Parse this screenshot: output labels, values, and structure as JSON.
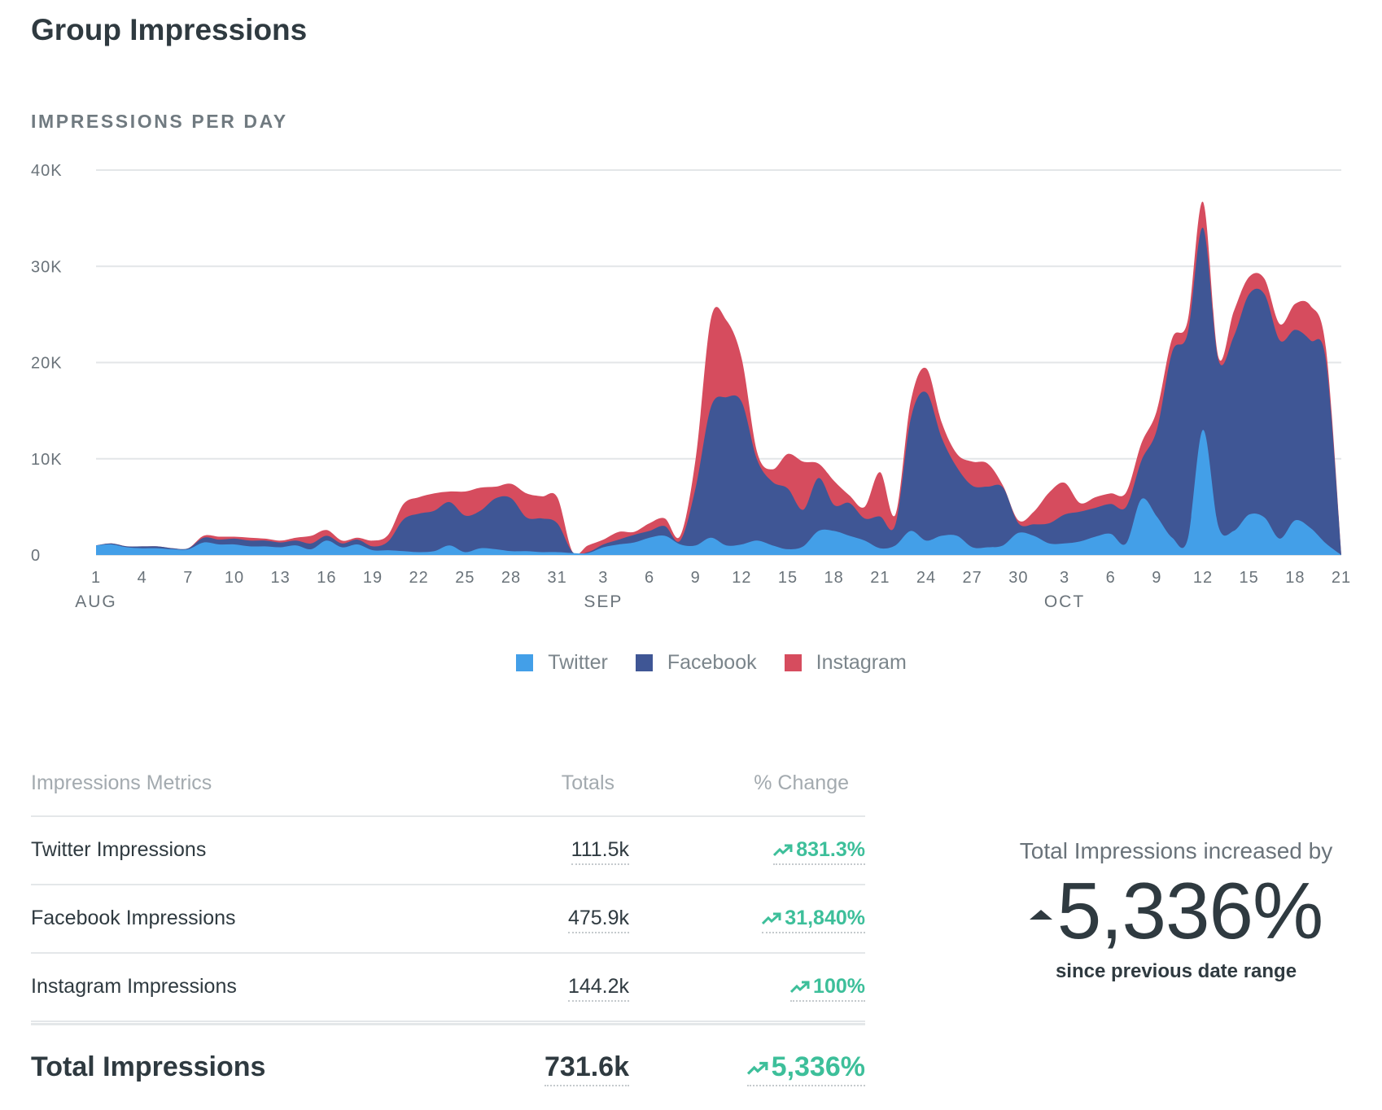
{
  "page": {
    "title": "Group Impressions"
  },
  "chart_data": {
    "type": "area",
    "stacked": true,
    "title": "IMPRESSIONS PER DAY",
    "ylim": [
      0,
      40000
    ],
    "y_ticks": [
      0,
      10000,
      20000,
      30000,
      40000
    ],
    "y_tick_labels": [
      "0",
      "10K",
      "20K",
      "30K",
      "40K"
    ],
    "x_tick_labels": [
      "1",
      "4",
      "7",
      "10",
      "13",
      "16",
      "19",
      "22",
      "25",
      "28",
      "31",
      "3",
      "6",
      "9",
      "12",
      "15",
      "18",
      "21",
      "24",
      "27",
      "30",
      "3",
      "6",
      "9",
      "12",
      "15",
      "18",
      "21"
    ],
    "x_tick_days": [
      0,
      3,
      6,
      9,
      12,
      15,
      18,
      21,
      24,
      27,
      30,
      33,
      36,
      39,
      42,
      45,
      48,
      51,
      54,
      57,
      60,
      63,
      66,
      69,
      72,
      75,
      78,
      81
    ],
    "months": [
      {
        "label": "AUG",
        "day": 0
      },
      {
        "label": "SEP",
        "day": 33
      },
      {
        "label": "OCT",
        "day": 63
      }
    ],
    "x_start": "Aug 1",
    "x_end": "Oct 21",
    "legend_position": "bottom",
    "series": [
      {
        "name": "Twitter",
        "color": "#439fe8",
        "values": [
          1000,
          1100,
          800,
          700,
          700,
          600,
          600,
          1300,
          1100,
          1100,
          900,
          900,
          800,
          1000,
          600,
          1500,
          800,
          1100,
          500,
          500,
          400,
          300,
          400,
          1000,
          300,
          700,
          600,
          400,
          400,
          300,
          300,
          200,
          200,
          800,
          1100,
          1300,
          1800,
          2000,
          1100,
          1000,
          1800,
          1000,
          1100,
          1500,
          1000,
          600,
          900,
          2500,
          2500,
          2000,
          1500,
          700,
          1000,
          2500,
          1500,
          2000,
          2000,
          800,
          800,
          1000,
          2300,
          2000,
          1200,
          1200,
          1400,
          1900,
          2200,
          1200,
          5800,
          4000,
          1800,
          1600,
          13000,
          3000,
          2500,
          4200,
          3900,
          1700,
          3600,
          2800,
          1200,
          0
        ]
      },
      {
        "name": "Facebook",
        "color": "#3f5695",
        "values": [
          0,
          100,
          100,
          200,
          200,
          100,
          100,
          500,
          500,
          600,
          600,
          600,
          500,
          500,
          600,
          500,
          400,
          500,
          400,
          900,
          3300,
          4000,
          4200,
          4500,
          3800,
          3900,
          5300,
          5500,
          3500,
          3500,
          3000,
          100,
          100,
          300,
          500,
          800,
          700,
          1000,
          400,
          6000,
          13600,
          15400,
          14800,
          8400,
          6600,
          6300,
          3800,
          5500,
          2700,
          3400,
          2300,
          3300,
          2200,
          11700,
          15400,
          10200,
          7100,
          6400,
          6300,
          6000,
          1000,
          1200,
          2100,
          3000,
          3100,
          3000,
          3100,
          3800,
          4000,
          9000,
          19300,
          21400,
          21000,
          17300,
          20200,
          22900,
          23200,
          20600,
          19800,
          19500,
          19000,
          0
        ]
      },
      {
        "name": "Instagram",
        "color": "#d64c5e",
        "values": [
          0,
          0,
          0,
          0,
          0,
          0,
          0,
          200,
          300,
          200,
          300,
          200,
          200,
          300,
          800,
          600,
          300,
          200,
          600,
          700,
          1600,
          1700,
          1800,
          1100,
          2500,
          2400,
          1200,
          1500,
          2500,
          2300,
          2700,
          0,
          700,
          500,
          800,
          300,
          800,
          800,
          500,
          3000,
          9200,
          8000,
          4500,
          800,
          1300,
          3600,
          5000,
          1500,
          2500,
          800,
          1200,
          4600,
          1000,
          1800,
          2500,
          1600,
          1400,
          2500,
          2400,
          200,
          300,
          1300,
          3200,
          3300,
          900,
          1100,
          1100,
          1500,
          1800,
          2000,
          1400,
          1300,
          2700,
          300,
          2600,
          1800,
          1600,
          1700,
          2700,
          3600,
          1300,
          0
        ]
      }
    ]
  },
  "legend": [
    {
      "name": "Twitter",
      "color": "#439fe8"
    },
    {
      "name": "Facebook",
      "color": "#3f5695"
    },
    {
      "name": "Instagram",
      "color": "#d64c5e"
    }
  ],
  "metrics_table": {
    "headers": {
      "metric": "Impressions Metrics",
      "totals": "Totals",
      "change": "% Change"
    },
    "rows": [
      {
        "label": "Twitter Impressions",
        "total": "111.5k",
        "change": "831.3%"
      },
      {
        "label": "Facebook Impressions",
        "total": "475.9k",
        "change": "31,840%"
      },
      {
        "label": "Instagram Impressions",
        "total": "144.2k",
        "change": "100%"
      }
    ],
    "total": {
      "label": "Total Impressions",
      "total": "731.6k",
      "change": "5,336%"
    }
  },
  "summary": {
    "heading": "Total Impressions increased by",
    "value": "5,336%",
    "caption": "since previous date range"
  },
  "colors": {
    "positive": "#3dbf9a",
    "text": "#2f3a40",
    "muted": "#a3aaaf"
  }
}
